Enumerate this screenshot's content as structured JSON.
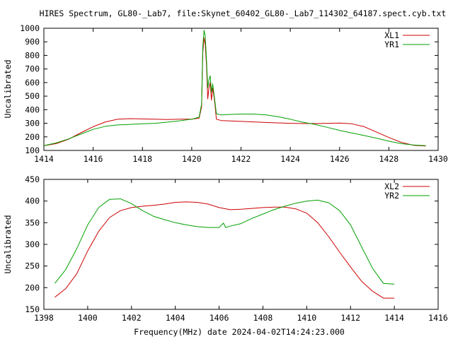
{
  "title": "HIRES Spectrum, GL80-_Lab7, file:Skynet_60402_GL80-_Lab7_114302_64187.spect.cyb.txt",
  "footer_label": "Frequency(MHz) date 2024-04-02T14:24:23.000",
  "colors": {
    "red": "#cc0000",
    "green": "#00a000",
    "axes": "#000000"
  },
  "chart_data": [
    {
      "type": "line",
      "ylabel": "Uncalibrated",
      "xlim": [
        1414,
        1430
      ],
      "ylim": [
        100,
        1000
      ],
      "xticks": [
        "1414",
        "1416",
        "1418",
        "1420",
        "1422",
        "1424",
        "1426",
        "1428",
        "1430"
      ],
      "yticks": [
        "100",
        "200",
        "300",
        "400",
        "500",
        "600",
        "700",
        "800",
        "900",
        "1000"
      ],
      "legend_position": "top-right",
      "series": [
        {
          "name": "XL1",
          "color": "#cc0000",
          "points": [
            [
              1414.0,
              135
            ],
            [
              1414.5,
              150
            ],
            [
              1415.0,
              182
            ],
            [
              1415.5,
              230
            ],
            [
              1416.0,
              275
            ],
            [
              1416.5,
              310
            ],
            [
              1417.0,
              330
            ],
            [
              1417.5,
              334
            ],
            [
              1418.0,
              332
            ],
            [
              1418.5,
              330
            ],
            [
              1419.0,
              328
            ],
            [
              1419.5,
              330
            ],
            [
              1420.0,
              330
            ],
            [
              1420.3,
              338
            ],
            [
              1420.4,
              420
            ],
            [
              1420.45,
              820
            ],
            [
              1420.5,
              930
            ],
            [
              1420.55,
              880
            ],
            [
              1420.6,
              720
            ],
            [
              1420.65,
              480
            ],
            [
              1420.7,
              560
            ],
            [
              1420.75,
              600
            ],
            [
              1420.8,
              470
            ],
            [
              1420.85,
              560
            ],
            [
              1420.9,
              500
            ],
            [
              1420.95,
              430
            ],
            [
              1421.0,
              330
            ],
            [
              1421.2,
              320
            ],
            [
              1421.5,
              318
            ],
            [
              1422.0,
              314
            ],
            [
              1422.5,
              310
            ],
            [
              1423.0,
              306
            ],
            [
              1423.5,
              303
            ],
            [
              1424.0,
              300
            ],
            [
              1424.5,
              298
            ],
            [
              1425.0,
              298
            ],
            [
              1425.5,
              300
            ],
            [
              1426.0,
              302
            ],
            [
              1426.5,
              296
            ],
            [
              1427.0,
              275
            ],
            [
              1427.5,
              235
            ],
            [
              1428.0,
              195
            ],
            [
              1428.5,
              160
            ],
            [
              1429.0,
              138
            ],
            [
              1429.5,
              132
            ]
          ]
        },
        {
          "name": "YR1",
          "color": "#00a000",
          "points": [
            [
              1414.0,
              136
            ],
            [
              1414.5,
              155
            ],
            [
              1415.0,
              185
            ],
            [
              1415.5,
              220
            ],
            [
              1416.0,
              255
            ],
            [
              1416.5,
              278
            ],
            [
              1417.0,
              288
            ],
            [
              1417.5,
              292
            ],
            [
              1418.0,
              296
            ],
            [
              1418.5,
              300
            ],
            [
              1419.0,
              308
            ],
            [
              1419.5,
              318
            ],
            [
              1420.0,
              330
            ],
            [
              1420.3,
              345
            ],
            [
              1420.4,
              440
            ],
            [
              1420.45,
              860
            ],
            [
              1420.5,
              985
            ],
            [
              1420.55,
              940
            ],
            [
              1420.6,
              760
            ],
            [
              1420.65,
              560
            ],
            [
              1420.7,
              620
            ],
            [
              1420.75,
              650
            ],
            [
              1420.8,
              530
            ],
            [
              1420.85,
              590
            ],
            [
              1420.9,
              520
            ],
            [
              1420.95,
              450
            ],
            [
              1421.0,
              370
            ],
            [
              1421.2,
              362
            ],
            [
              1421.5,
              365
            ],
            [
              1422.0,
              368
            ],
            [
              1422.5,
              368
            ],
            [
              1423.0,
              362
            ],
            [
              1423.5,
              348
            ],
            [
              1424.0,
              330
            ],
            [
              1424.5,
              308
            ],
            [
              1425.0,
              292
            ],
            [
              1425.5,
              270
            ],
            [
              1426.0,
              248
            ],
            [
              1426.5,
              228
            ],
            [
              1427.0,
              210
            ],
            [
              1427.5,
              190
            ],
            [
              1428.0,
              168
            ],
            [
              1428.5,
              150
            ],
            [
              1429.0,
              140
            ],
            [
              1429.5,
              135
            ]
          ]
        }
      ]
    },
    {
      "type": "line",
      "ylabel": "Uncalibrated",
      "xlim": [
        1398,
        1416
      ],
      "ylim": [
        150,
        450
      ],
      "xticks": [
        "1398",
        "1400",
        "1402",
        "1404",
        "1406",
        "1408",
        "1410",
        "1412",
        "1414",
        "1416"
      ],
      "yticks": [
        "150",
        "200",
        "250",
        "300",
        "350",
        "400",
        "450"
      ],
      "legend_position": "top-right",
      "series": [
        {
          "name": "XL2",
          "color": "#cc0000",
          "points": [
            [
              1398.5,
              178
            ],
            [
              1399.0,
              198
            ],
            [
              1399.5,
              232
            ],
            [
              1400.0,
              285
            ],
            [
              1400.5,
              330
            ],
            [
              1401.0,
              362
            ],
            [
              1401.5,
              378
            ],
            [
              1402.0,
              385
            ],
            [
              1402.5,
              388
            ],
            [
              1403.0,
              390
            ],
            [
              1403.5,
              393
            ],
            [
              1404.0,
              397
            ],
            [
              1404.5,
              398
            ],
            [
              1405.0,
              397
            ],
            [
              1405.5,
              393
            ],
            [
              1406.0,
              385
            ],
            [
              1406.5,
              380
            ],
            [
              1407.0,
              381
            ],
            [
              1407.5,
              383
            ],
            [
              1408.0,
              385
            ],
            [
              1408.5,
              386
            ],
            [
              1409.0,
              386
            ],
            [
              1409.5,
              382
            ],
            [
              1410.0,
              372
            ],
            [
              1410.5,
              350
            ],
            [
              1411.0,
              318
            ],
            [
              1411.5,
              282
            ],
            [
              1412.0,
              248
            ],
            [
              1412.5,
              215
            ],
            [
              1413.0,
              192
            ],
            [
              1413.5,
              176
            ],
            [
              1414.0,
              176
            ]
          ]
        },
        {
          "name": "YR2",
          "color": "#00a000",
          "points": [
            [
              1398.5,
              210
            ],
            [
              1399.0,
              242
            ],
            [
              1399.5,
              290
            ],
            [
              1400.0,
              345
            ],
            [
              1400.5,
              385
            ],
            [
              1401.0,
              404
            ],
            [
              1401.5,
              405
            ],
            [
              1402.0,
              394
            ],
            [
              1402.5,
              378
            ],
            [
              1403.0,
              365
            ],
            [
              1403.5,
              357
            ],
            [
              1404.0,
              350
            ],
            [
              1404.5,
              345
            ],
            [
              1405.0,
              341
            ],
            [
              1405.5,
              339
            ],
            [
              1406.0,
              339
            ],
            [
              1406.2,
              349
            ],
            [
              1406.3,
              339
            ],
            [
              1406.5,
              342
            ],
            [
              1407.0,
              348
            ],
            [
              1407.5,
              360
            ],
            [
              1408.0,
              370
            ],
            [
              1408.5,
              380
            ],
            [
              1409.0,
              388
            ],
            [
              1409.5,
              395
            ],
            [
              1410.0,
              400
            ],
            [
              1410.5,
              402
            ],
            [
              1411.0,
              396
            ],
            [
              1411.5,
              378
            ],
            [
              1412.0,
              345
            ],
            [
              1412.5,
              295
            ],
            [
              1413.0,
              245
            ],
            [
              1413.5,
              210
            ],
            [
              1414.0,
              208
            ]
          ]
        }
      ]
    }
  ]
}
